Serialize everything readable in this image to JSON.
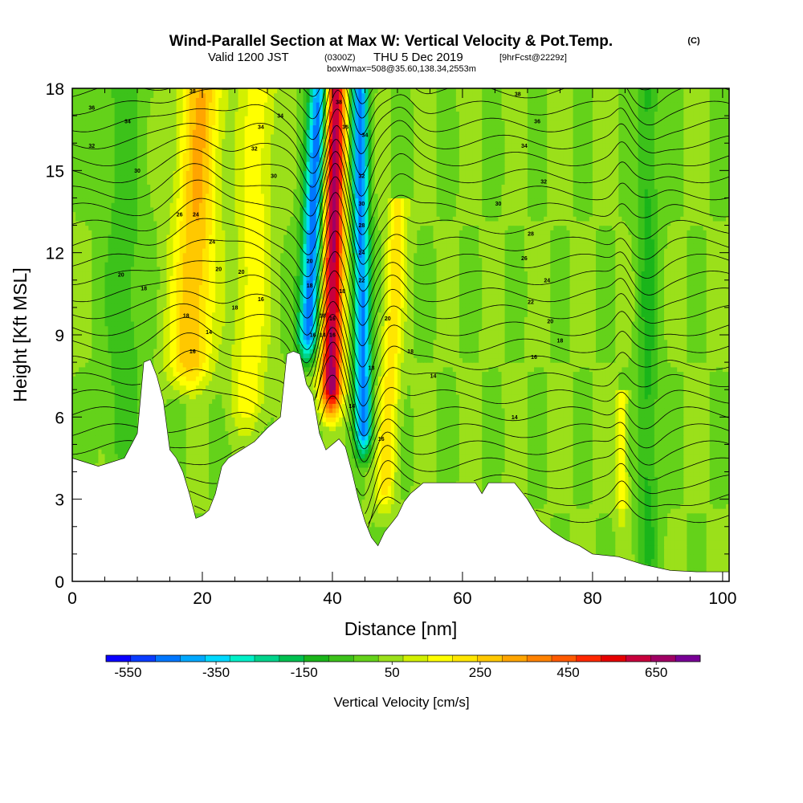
{
  "header": {
    "title_main": "Wind-Parallel Section at Max W: Vertical Velocity & Pot.Temp.",
    "title_mark": "(C)",
    "subtitle_a": "Valid 1200 JST",
    "subtitle_b": "(0300Z)",
    "subtitle_c": "THU 5 Dec 2019",
    "subtitle_d": "[9hrFcst@2229z]",
    "info_line": "boxWmax=508@35.60,138.34,2553m"
  },
  "chart_data": {
    "type": "heatmap",
    "xlabel": "Distance [nm]",
    "ylabel": "Height [Kft MSL]",
    "xlim": [
      0,
      101
    ],
    "ylim": [
      0,
      18
    ],
    "x_ticks": [
      0,
      20,
      40,
      60,
      80,
      100
    ],
    "y_ticks": [
      0,
      3,
      6,
      9,
      12,
      15,
      18
    ],
    "colorbar": {
      "title": "Vertical Velocity [cm/s]",
      "range": [
        -600,
        750
      ],
      "tick_values": [
        -550,
        -350,
        -150,
        50,
        250,
        450,
        650
      ],
      "tick_labels": [
        "-550",
        "-350",
        "-150",
        "50",
        "250",
        "450",
        "650"
      ],
      "colors": [
        "#0a00ff",
        "#0a3cff",
        "#0077ff",
        "#00a8ff",
        "#00d9ff",
        "#00f0c8",
        "#00d48c",
        "#00c050",
        "#1ab51a",
        "#3cc21a",
        "#64d21a",
        "#9be01a",
        "#d2f000",
        "#ffff00",
        "#ffe600",
        "#ffc800",
        "#ffa500",
        "#ff8200",
        "#ff5a00",
        "#ff2800",
        "#e60000",
        "#c8003c",
        "#a00064",
        "#780096"
      ]
    },
    "terrain_kft": {
      "x": [
        0,
        4,
        8,
        10,
        11,
        12,
        13,
        14,
        15,
        16,
        17,
        18,
        19,
        20,
        21,
        22,
        23,
        24,
        26,
        28,
        30,
        32,
        33,
        34,
        35,
        36,
        37,
        38,
        39,
        40,
        41,
        42,
        43,
        44,
        45,
        46,
        47,
        48,
        49,
        50,
        51,
        52,
        53,
        54,
        56,
        58,
        60,
        62,
        63,
        64,
        68,
        70,
        72,
        74,
        76,
        78,
        80,
        84,
        88,
        90,
        92,
        96,
        100,
        101
      ],
      "y": [
        4.5,
        4.2,
        4.5,
        5.4,
        8.0,
        8.1,
        7.5,
        6.6,
        4.8,
        4.5,
        4.0,
        3.2,
        2.3,
        2.4,
        2.6,
        3.2,
        4.2,
        4.5,
        4.8,
        5.1,
        5.6,
        6.0,
        8.3,
        8.4,
        8.3,
        7.2,
        6.8,
        5.4,
        4.8,
        5.0,
        5.2,
        4.9,
        4.0,
        3.0,
        2.2,
        1.6,
        1.3,
        1.8,
        2.1,
        2.4,
        2.9,
        3.2,
        3.4,
        3.6,
        3.6,
        3.6,
        3.6,
        3.6,
        3.2,
        3.6,
        3.6,
        3.0,
        2.2,
        1.8,
        1.5,
        1.3,
        1.0,
        0.9,
        0.6,
        0.5,
        0.4,
        0.35,
        0.35,
        0.35
      ]
    },
    "w_features": [
      {
        "x": 18.0,
        "w": 3.2,
        "tilt": 0.18,
        "y0": 7.5,
        "y1": 18.0,
        "value": 280
      },
      {
        "x": 27.0,
        "w": 2.6,
        "tilt": 0.14,
        "y0": 6.0,
        "y1": 18.0,
        "value": 150
      },
      {
        "x": 36.2,
        "w": 1.6,
        "tilt": 0.2,
        "y0": 8.5,
        "y1": 18.0,
        "value": -520
      },
      {
        "x": 39.8,
        "w": 1.7,
        "tilt": 0.05,
        "y0": 6.5,
        "y1": 18.0,
        "value": 650
      },
      {
        "x": 44.8,
        "w": 1.3,
        "tilt": -0.05,
        "y0": 5.0,
        "y1": 18.0,
        "value": -480
      },
      {
        "x": 48.0,
        "w": 1.5,
        "tilt": 0.2,
        "y0": 3.0,
        "y1": 13.0,
        "value": 200
      },
      {
        "x": 84.5,
        "w": 0.9,
        "tilt": 0.0,
        "y0": 2.5,
        "y1": 6.0,
        "value": 150
      },
      {
        "x": 88.5,
        "w": 1.6,
        "tilt": 0.0,
        "y0": 0.5,
        "y1": 18.0,
        "value": -130
      },
      {
        "x": 8.0,
        "w": 3.0,
        "tilt": 0.0,
        "y0": 4.5,
        "y1": 18.0,
        "value": -90
      }
    ],
    "contour_levels_K": [
      14,
      18,
      20,
      24,
      28,
      30,
      32,
      34,
      36,
      38
    ],
    "contour_labels": [
      {
        "x": 3,
        "y": 17.3,
        "text": "36"
      },
      {
        "x": 8.5,
        "y": 16.8,
        "text": "34"
      },
      {
        "x": 3,
        "y": 15.9,
        "text": "32"
      },
      {
        "x": 10,
        "y": 15.0,
        "text": "30"
      },
      {
        "x": 7.5,
        "y": 11.2,
        "text": "20"
      },
      {
        "x": 11,
        "y": 10.7,
        "text": "18"
      },
      {
        "x": 18.5,
        "y": 17.9,
        "text": "38"
      },
      {
        "x": 16.5,
        "y": 13.4,
        "text": "26"
      },
      {
        "x": 19,
        "y": 13.4,
        "text": "24"
      },
      {
        "x": 21.5,
        "y": 12.4,
        "text": "24"
      },
      {
        "x": 22.5,
        "y": 11.4,
        "text": "20"
      },
      {
        "x": 17.5,
        "y": 9.7,
        "text": "18"
      },
      {
        "x": 21,
        "y": 9.1,
        "text": "14"
      },
      {
        "x": 18.5,
        "y": 8.4,
        "text": "16"
      },
      {
        "x": 29,
        "y": 16.6,
        "text": "34"
      },
      {
        "x": 28,
        "y": 15.8,
        "text": "32"
      },
      {
        "x": 31,
        "y": 14.8,
        "text": "30"
      },
      {
        "x": 26,
        "y": 11.3,
        "text": "20"
      },
      {
        "x": 25,
        "y": 10.0,
        "text": "18"
      },
      {
        "x": 29,
        "y": 10.3,
        "text": "16"
      },
      {
        "x": 32,
        "y": 17.0,
        "text": "34"
      },
      {
        "x": 41,
        "y": 17.5,
        "text": "38"
      },
      {
        "x": 42,
        "y": 16.6,
        "text": "36"
      },
      {
        "x": 45,
        "y": 16.3,
        "text": "34"
      },
      {
        "x": 44.5,
        "y": 14.8,
        "text": "32"
      },
      {
        "x": 44.5,
        "y": 13.8,
        "text": "30"
      },
      {
        "x": 44.5,
        "y": 13.0,
        "text": "28"
      },
      {
        "x": 44.5,
        "y": 12.0,
        "text": "24"
      },
      {
        "x": 44.5,
        "y": 11.0,
        "text": "22"
      },
      {
        "x": 36.5,
        "y": 11.7,
        "text": "20"
      },
      {
        "x": 36.5,
        "y": 10.8,
        "text": "18"
      },
      {
        "x": 38.5,
        "y": 9.7,
        "text": "18"
      },
      {
        "x": 40,
        "y": 9.6,
        "text": "16"
      },
      {
        "x": 41.5,
        "y": 10.6,
        "text": "18"
      },
      {
        "x": 37,
        "y": 9.0,
        "text": "16"
      },
      {
        "x": 38.5,
        "y": 9.0,
        "text": "14"
      },
      {
        "x": 40,
        "y": 9.0,
        "text": "16"
      },
      {
        "x": 46,
        "y": 7.8,
        "text": "18"
      },
      {
        "x": 43,
        "y": 6.4,
        "text": "14"
      },
      {
        "x": 47.5,
        "y": 5.2,
        "text": "16"
      },
      {
        "x": 48.5,
        "y": 9.6,
        "text": "20"
      },
      {
        "x": 52,
        "y": 8.4,
        "text": "18"
      },
      {
        "x": 55.5,
        "y": 7.5,
        "text": "14"
      },
      {
        "x": 68.5,
        "y": 17.8,
        "text": "38"
      },
      {
        "x": 71.5,
        "y": 16.8,
        "text": "36"
      },
      {
        "x": 69.5,
        "y": 15.9,
        "text": "34"
      },
      {
        "x": 72.5,
        "y": 14.6,
        "text": "32"
      },
      {
        "x": 65.5,
        "y": 13.8,
        "text": "30"
      },
      {
        "x": 70.5,
        "y": 12.7,
        "text": "28"
      },
      {
        "x": 69.5,
        "y": 11.8,
        "text": "26"
      },
      {
        "x": 73,
        "y": 11.0,
        "text": "24"
      },
      {
        "x": 70.5,
        "y": 10.2,
        "text": "22"
      },
      {
        "x": 73.5,
        "y": 9.5,
        "text": "20"
      },
      {
        "x": 75,
        "y": 8.8,
        "text": "18"
      },
      {
        "x": 71,
        "y": 8.2,
        "text": "16"
      },
      {
        "x": 68,
        "y": 6.0,
        "text": "14"
      }
    ]
  }
}
